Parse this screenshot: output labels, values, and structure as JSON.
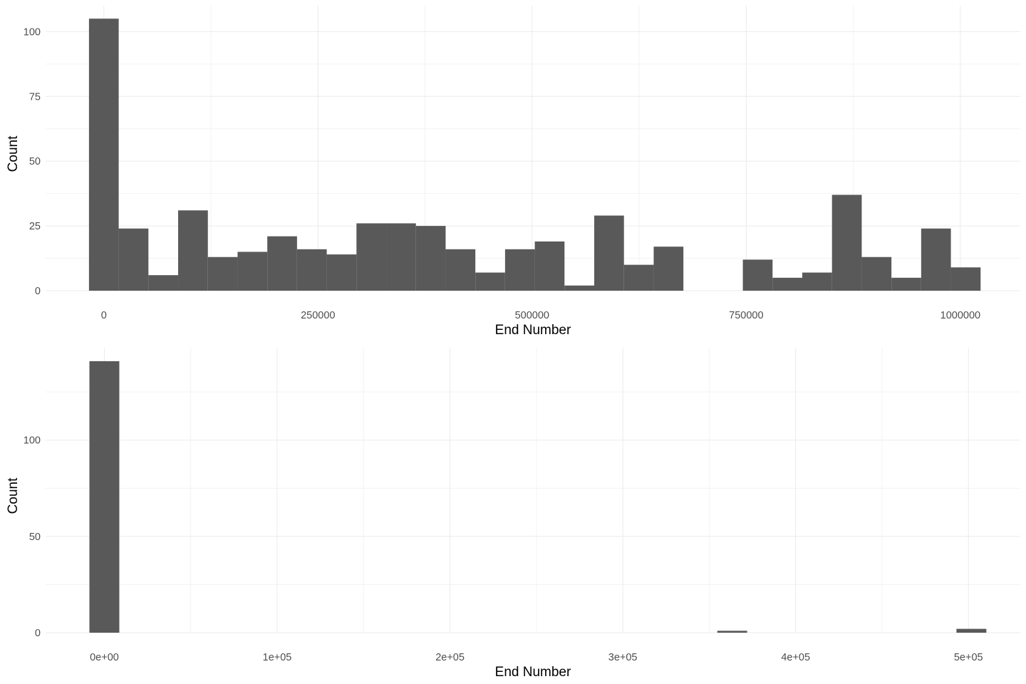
{
  "colors": {
    "bar": "#595959",
    "grid_major": "#ebebeb",
    "grid_minor": "#f3f3f3",
    "background": "#ffffff"
  },
  "chart_data": [
    {
      "type": "bar",
      "xlabel": "End Number",
      "ylabel": "Count",
      "xlim": [
        -68000,
        1070000
      ],
      "ylim": [
        0,
        110
      ],
      "grid": true,
      "bin_width": 34700,
      "bin_centers": [
        0,
        34700,
        69400,
        104100,
        138800,
        173500,
        208200,
        242900,
        277600,
        312300,
        347000,
        381700,
        416400,
        451100,
        485800,
        520500,
        555200,
        589900,
        624600,
        659300,
        694000,
        728700,
        763400,
        798100,
        832800,
        867500,
        902200,
        936900,
        971600,
        1006300
      ],
      "values": [
        105,
        24,
        6,
        31,
        13,
        15,
        21,
        16,
        14,
        26,
        26,
        25,
        16,
        7,
        16,
        19,
        2,
        29,
        10,
        17,
        0,
        0,
        12,
        5,
        7,
        37,
        13,
        5,
        24,
        9
      ],
      "x_ticks": [
        0,
        250000,
        500000,
        750000,
        1000000
      ],
      "x_tick_labels": [
        "0",
        "250000",
        "500000",
        "750000",
        "1000000"
      ],
      "y_ticks": [
        0,
        25,
        50,
        75,
        100
      ],
      "y_tick_labels": [
        "0",
        "25",
        "50",
        "75",
        "100"
      ]
    },
    {
      "type": "bar",
      "xlabel": "End Number",
      "ylabel": "Count",
      "xlim": [
        -34000,
        530000
      ],
      "ylim": [
        0,
        148
      ],
      "grid": true,
      "bin_width": 17300,
      "bin_centers": [
        0,
        363300,
        501700
      ],
      "values": [
        141,
        1,
        2
      ],
      "x_ticks": [
        0,
        100000,
        200000,
        300000,
        400000,
        500000
      ],
      "x_tick_labels": [
        "0e+00",
        "1e+05",
        "2e+05",
        "3e+05",
        "4e+05",
        "5e+05"
      ],
      "y_ticks": [
        0,
        50,
        100
      ],
      "y_tick_labels": [
        "0",
        "50",
        "100"
      ]
    }
  ]
}
